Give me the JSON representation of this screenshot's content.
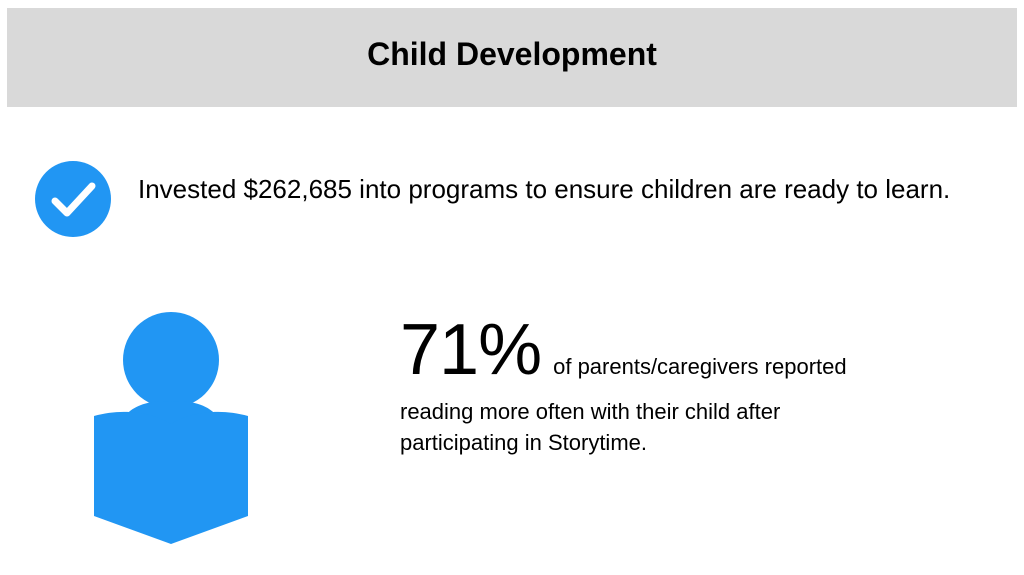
{
  "header": {
    "title": "Child Development"
  },
  "investment": {
    "icon": "checkmark-circle-icon",
    "text": "Invested $262,685 into programs to ensure children are ready to learn."
  },
  "storytime": {
    "icon": "child-reading-book-icon",
    "percent": "71%",
    "text_inline": "of parents/caregivers reported",
    "text_rest": "reading more often with their child after participating in Storytime."
  },
  "colors": {
    "accent": "#2196f3",
    "header_bg": "#d9d9d9"
  }
}
